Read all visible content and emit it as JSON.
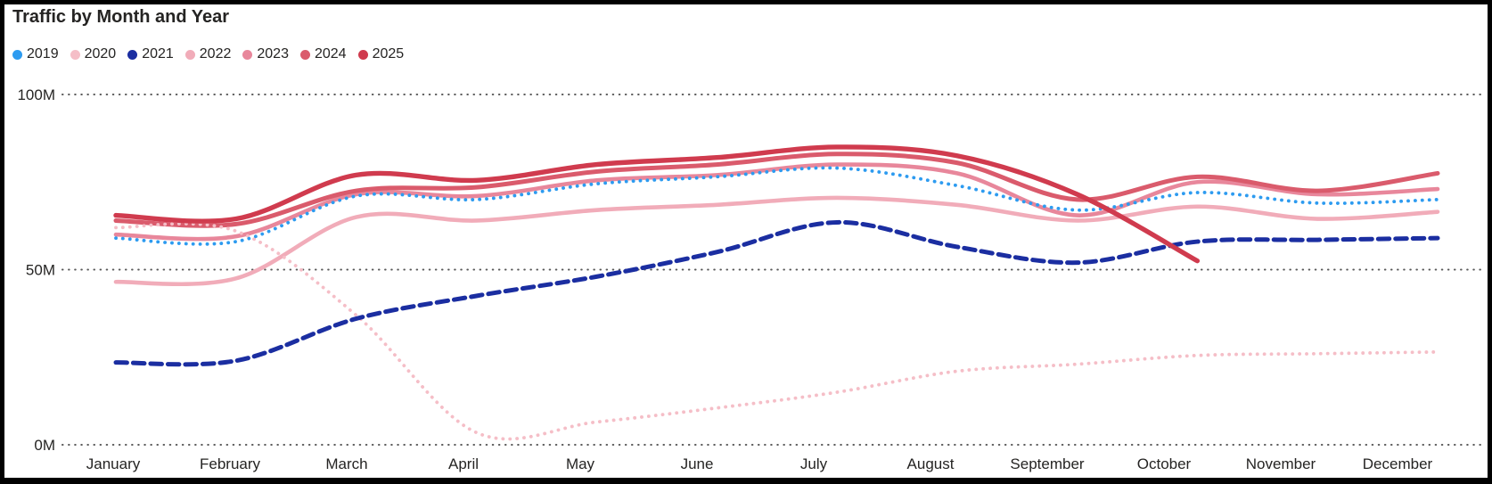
{
  "card": {
    "title": "Traffic by Month and Year"
  },
  "chart_data": {
    "type": "line",
    "title": "Traffic by Month and Year",
    "interpolation": "smooth",
    "legend_position": "top-left",
    "grid": "horizontal-dotted",
    "grid_color": "#595959",
    "x_categories": [
      "January",
      "February",
      "March",
      "April",
      "May",
      "June",
      "July",
      "August",
      "September",
      "October",
      "November",
      "December"
    ],
    "y_axis": {
      "unit": "M",
      "range": [
        0,
        100
      ],
      "ticks": [
        {
          "label": "0M",
          "value": 0
        },
        {
          "label": "50M",
          "value": 50
        },
        {
          "label": "100M",
          "value": 100
        }
      ]
    },
    "series": [
      {
        "name": "2019",
        "color": "#2D9BF0",
        "style": "dotted",
        "values": [
          59,
          58,
          71,
          70,
          74.5,
          76.5,
          79,
          74,
          67,
          72,
          69,
          70
        ]
      },
      {
        "name": "2020",
        "color": "#F5BEC7",
        "style": "dotted",
        "values": [
          62,
          61,
          37,
          3.5,
          6.5,
          10.5,
          15,
          21,
          23,
          25.5,
          26,
          26.5
        ]
      },
      {
        "name": "2021",
        "color": "#1B2EA1",
        "style": "dashed",
        "values": [
          23.5,
          24,
          36,
          42.5,
          48,
          55,
          63.5,
          56.5,
          52,
          58,
          58.5,
          59
        ]
      },
      {
        "name": "2022",
        "color": "#F1ACB9",
        "style": "solid",
        "values": [
          46.5,
          47.5,
          65,
          64,
          67,
          68.5,
          70.5,
          68.5,
          64,
          68,
          64.5,
          66.5
        ]
      },
      {
        "name": "2023",
        "color": "#E8879B",
        "style": "solid",
        "values": [
          60,
          59.5,
          71.5,
          71,
          75.5,
          77,
          80,
          77.5,
          65.5,
          75,
          71.5,
          73
        ]
      },
      {
        "name": "2024",
        "color": "#DA5B6C",
        "style": "solid",
        "values": [
          64,
          63,
          72.5,
          73.5,
          78,
          80,
          83,
          80.5,
          70,
          76.5,
          72.5,
          77.5
        ]
      },
      {
        "name": "2025",
        "color": "#D03B4E",
        "style": "solid",
        "values": [
          65.5,
          64.5,
          77,
          75.5,
          80,
          82,
          85,
          82.5,
          71.5,
          52.5,
          null,
          null
        ]
      }
    ],
    "draw_order": [
      "2022",
      "2023",
      "2024",
      "2020",
      "2019",
      "2021",
      "2025"
    ]
  }
}
